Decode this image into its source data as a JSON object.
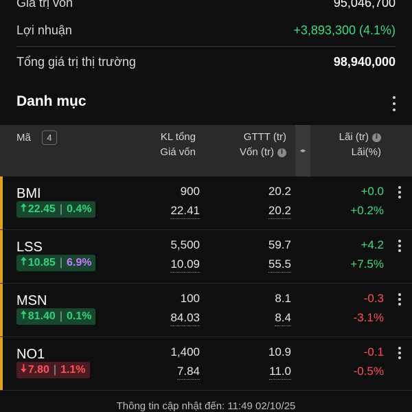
{
  "summary": {
    "cost": {
      "label": "Giá trị vốn",
      "value": "95,046,700"
    },
    "profit": {
      "label": "Lợi nhuận",
      "value": "+3,893,300 (4.1%)"
    },
    "market": {
      "label": "Tổng giá trị thị trường",
      "value": "98,940,000"
    }
  },
  "portfolio": {
    "title": "Danh mục",
    "header": {
      "symbol": "Mã",
      "count": "4",
      "qty_line1": "KL tổng",
      "qty_line2": "Giá vốn",
      "value_line1": "GTTT (tr)",
      "value_line2": "Vốn (tr)",
      "pl_line1": "Lãi (tr)",
      "pl_line2": "Lãi(%)",
      "info_glyph": "i",
      "expand_glyph": "◂▸"
    },
    "rows": [
      {
        "ticker": "BMI",
        "arrow": "🠅",
        "price": "22.45",
        "change_pct": "0.4%",
        "qty": "900",
        "avg_price": "22.41",
        "mkt_value": "20.2",
        "cost_value": "20.2",
        "pl": "+0.0",
        "pl_pct": "+0.2%"
      },
      {
        "ticker": "LSS",
        "arrow": "🠅",
        "price": "10.85",
        "change_pct": "6.9%",
        "qty": "5,500",
        "avg_price": "10.09",
        "mkt_value": "59.7",
        "cost_value": "55.5",
        "pl": "+4.2",
        "pl_pct": "+7.5%"
      },
      {
        "ticker": "MSN",
        "arrow": "🠅",
        "price": "81.40",
        "change_pct": "0.1%",
        "qty": "100",
        "avg_price": "84.03",
        "mkt_value": "8.1",
        "cost_value": "8.4",
        "pl": "-0.3",
        "pl_pct": "-3.1%"
      },
      {
        "ticker": "NO1",
        "arrow": "🠇",
        "price": "7.80",
        "change_pct": "1.1%",
        "qty": "1,400",
        "avg_price": "7.84",
        "mkt_value": "10.9",
        "cost_value": "11.0",
        "pl": "-0.1",
        "pl_pct": "-0.5%"
      }
    ]
  },
  "footer": {
    "text": "Thông tin cập nhật đến: 11:49 02/10/25"
  },
  "colors": {
    "accent": "#e0a21b",
    "up": "#33d17a",
    "down": "#ff4d5e",
    "ceiling": "#c57bff"
  }
}
